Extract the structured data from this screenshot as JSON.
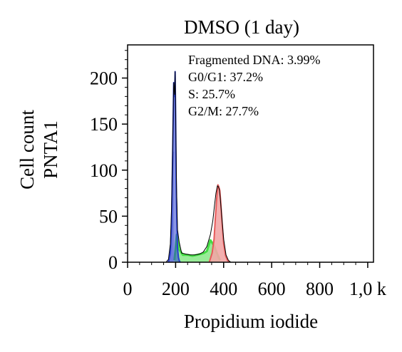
{
  "chart_data": {
    "type": "area",
    "title": "DMSO (1 day)",
    "xlabel": "Propidium iodide",
    "ylabel": [
      "Cell count",
      "PNTA1"
    ],
    "xlim": [
      0,
      1024
    ],
    "ylim": [
      0,
      236
    ],
    "x_ticks": [
      "0",
      "200",
      "400",
      "600",
      "800",
      "1,0 k"
    ],
    "x_tick_values": [
      0,
      200,
      400,
      600,
      800,
      1000
    ],
    "y_ticks": [
      "0",
      "50",
      "100",
      "150",
      "200"
    ],
    "y_tick_values": [
      0,
      50,
      100,
      150,
      200
    ],
    "annotations": [
      "Fragmented DNA: 3.99%",
      "G0/G1: 37.2%",
      "S: 25.7%",
      "G2/M: 27.7%"
    ],
    "colors": {
      "histogram_outline": "#000000",
      "fragmented": "#b6b8e6",
      "g0g1": "#2a3fd0",
      "s_phase": "#44dd44",
      "g2m": "#e65a5a",
      "g2m_fill": "#f2a6a6"
    },
    "series": [
      {
        "name": "Fragmented DNA",
        "x": [
          165,
          172,
          178,
          183,
          188,
          192
        ],
        "y": [
          0,
          4,
          18,
          42,
          82,
          120
        ]
      },
      {
        "name": "G0/G1",
        "x": [
          170,
          178,
          183,
          188,
          192,
          196,
          198,
          200,
          202,
          205,
          208,
          212,
          216,
          220
        ],
        "y": [
          0,
          10,
          40,
          120,
          195,
          180,
          207,
          160,
          90,
          45,
          15,
          5,
          1,
          0
        ]
      },
      {
        "name": "S",
        "x": [
          195,
          205,
          215,
          230,
          250,
          270,
          290,
          305,
          318,
          330,
          345,
          360,
          375,
          385
        ],
        "y": [
          2,
          30,
          14,
          8,
          8,
          7,
          8,
          9,
          10,
          12,
          24,
          18,
          8,
          2
        ]
      },
      {
        "name": "G2/M",
        "x": [
          340,
          352,
          360,
          366,
          372,
          376,
          380,
          384,
          388,
          394,
          400,
          408,
          416,
          425
        ],
        "y": [
          0,
          10,
          25,
          50,
          72,
          84,
          82,
          78,
          65,
          42,
          20,
          7,
          2,
          0
        ]
      }
    ],
    "total_histogram": {
      "x": [
        160,
        170,
        178,
        183,
        188,
        192,
        196,
        198,
        200,
        204,
        208,
        215,
        225,
        240,
        260,
        280,
        300,
        315,
        330,
        345,
        355,
        362,
        368,
        374,
        378,
        382,
        386,
        392,
        400,
        410,
        420,
        430
      ],
      "y": [
        0,
        3,
        20,
        60,
        130,
        195,
        182,
        207,
        165,
        80,
        35,
        22,
        10,
        9,
        8,
        8,
        9,
        11,
        17,
        30,
        45,
        62,
        75,
        83,
        82,
        79,
        70,
        50,
        25,
        8,
        2,
        0
      ]
    },
    "grid": false,
    "legend": "none"
  }
}
